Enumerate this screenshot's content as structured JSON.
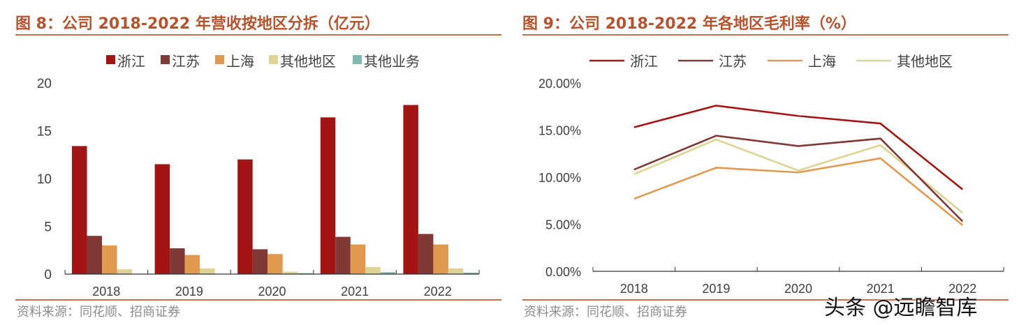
{
  "chart_data": [
    {
      "type": "bar",
      "title": "图 8：公司 2018-2022 年营收按地区分拆（亿元）",
      "source": "资料来源：同花顺、招商证券",
      "categories": [
        "2018",
        "2019",
        "2020",
        "2021",
        "2022"
      ],
      "ylim": [
        0,
        20
      ],
      "yticks": [
        "0",
        "5",
        "10",
        "15",
        "20"
      ],
      "grid": false,
      "legend_position": "top",
      "series": [
        {
          "name": "浙江",
          "color": "#a31515",
          "values": [
            13.4,
            11.5,
            12.0,
            16.4,
            17.7
          ]
        },
        {
          "name": "江苏",
          "color": "#7f3a36",
          "values": [
            4.0,
            2.7,
            2.6,
            3.9,
            4.2
          ]
        },
        {
          "name": "上海",
          "color": "#e09a50",
          "values": [
            3.0,
            2.0,
            2.1,
            3.1,
            3.1
          ]
        },
        {
          "name": "其他地区",
          "color": "#ddd393",
          "values": [
            0.5,
            0.6,
            0.25,
            0.75,
            0.6
          ]
        },
        {
          "name": "其他业务",
          "color": "#7fb8b0",
          "values": [
            0.0,
            0.0,
            0.1,
            0.2,
            0.15
          ]
        }
      ]
    },
    {
      "type": "line",
      "title": "图 9：公司 2018-2022 年各地区毛利率（%）",
      "source": "资料来源：同花顺、招商证券",
      "categories": [
        "2018",
        "2019",
        "2020",
        "2021",
        "2022"
      ],
      "ylim": [
        0,
        20
      ],
      "yticks": [
        "0.00%",
        "5.00%",
        "10.00%",
        "15.00%",
        "20.00%"
      ],
      "grid": false,
      "legend_position": "top",
      "series": [
        {
          "name": "浙江",
          "color": "#a31515",
          "values": [
            15.3,
            17.6,
            16.5,
            15.7,
            8.7
          ]
        },
        {
          "name": "江苏",
          "color": "#7f3a36",
          "values": [
            10.8,
            14.4,
            13.3,
            14.1,
            5.3
          ]
        },
        {
          "name": "上海",
          "color": "#e09a50",
          "values": [
            7.7,
            11.0,
            10.5,
            12.0,
            4.9
          ]
        },
        {
          "name": "其他地区",
          "color": "#ddd393",
          "values": [
            10.3,
            14.0,
            10.7,
            13.4,
            6.2
          ]
        }
      ]
    }
  ],
  "watermark": "头条 @远瞻智库"
}
